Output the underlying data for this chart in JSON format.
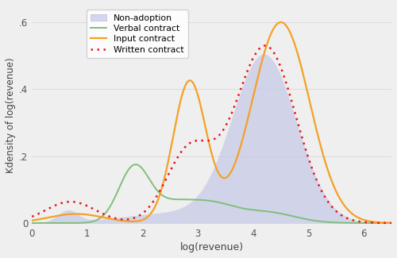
{
  "xlabel": "log(revenue)",
  "ylabel": "Kdensity of log(revenue)",
  "xlim": [
    0,
    6.5
  ],
  "ylim": [
    -0.005,
    0.65
  ],
  "yticks": [
    0,
    0.2,
    0.4,
    0.6
  ],
  "ytick_labels": [
    "0",
    ".2",
    ".4",
    ".6"
  ],
  "xticks": [
    0,
    1,
    2,
    3,
    4,
    5,
    6
  ],
  "xtick_labels": [
    "0",
    "1",
    "2",
    "3",
    "4",
    "5",
    "6"
  ],
  "plot_bg_color": "#efefef",
  "fill_color": "#c8cae8",
  "fill_alpha": 0.75,
  "nonadopt_line_color": "#c8cae8",
  "verbal_color": "#7fbf7b",
  "input_color": "#f5a025",
  "written_color": "#e8151b",
  "legend_labels": [
    "Non-adoption",
    "Verbal contract",
    "Input contract",
    "Written contract"
  ]
}
